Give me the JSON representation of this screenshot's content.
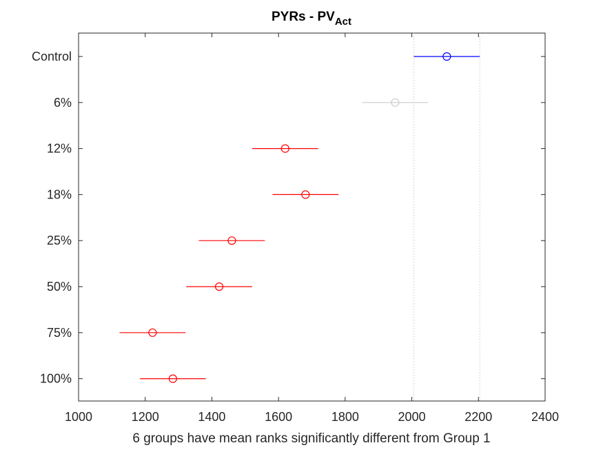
{
  "chart_data": {
    "type": "scatter",
    "title": "PYRs - PV",
    "title_subscript": "Act",
    "xlabel": "6 groups have mean ranks significantly different from Group 1",
    "ylabel": "",
    "xlim": [
      1000,
      2400
    ],
    "xticks": [
      1000,
      1200,
      1400,
      1600,
      1800,
      2000,
      2200,
      2400
    ],
    "grid": false,
    "reference_lines": [
      2006,
      2204
    ],
    "groups": [
      {
        "label": "Control",
        "mean": 2105,
        "lo": 2006,
        "hi": 2204,
        "color": "#0000ff"
      },
      {
        "label": "6%",
        "mean": 1950,
        "lo": 1851,
        "hi": 2049,
        "color": "#cccccc"
      },
      {
        "label": "12%",
        "mean": 1620,
        "lo": 1521,
        "hi": 1719,
        "color": "#ff0000"
      },
      {
        "label": "18%",
        "mean": 1681,
        "lo": 1582,
        "hi": 1780,
        "color": "#ff0000"
      },
      {
        "label": "25%",
        "mean": 1460,
        "lo": 1361,
        "hi": 1559,
        "color": "#ff0000"
      },
      {
        "label": "50%",
        "mean": 1422,
        "lo": 1323,
        "hi": 1521,
        "color": "#ff0000"
      },
      {
        "label": "75%",
        "mean": 1222,
        "lo": 1123,
        "hi": 1321,
        "color": "#ff0000"
      },
      {
        "label": "100%",
        "mean": 1283,
        "lo": 1184,
        "hi": 1382,
        "color": "#ff0000"
      }
    ]
  }
}
